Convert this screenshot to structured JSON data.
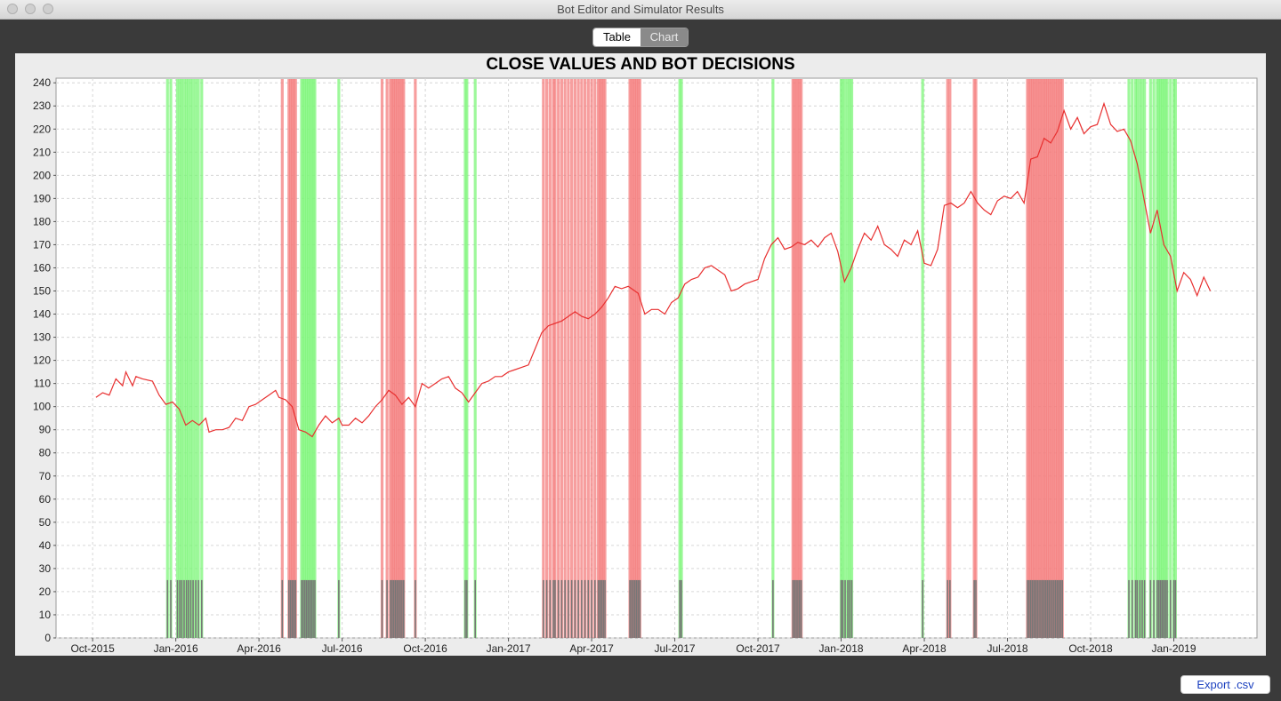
{
  "window": {
    "title": "Bot Editor and Simulator Results"
  },
  "tabs": [
    {
      "label": "Table",
      "selected": true
    },
    {
      "label": "Chart",
      "selected": false
    }
  ],
  "export_button": {
    "label": "Export .csv"
  },
  "colors": {
    "buy": "#7ef57a",
    "sell": "#f47e7e",
    "line": "#e83030",
    "marker": "#777777"
  },
  "chart_data": {
    "type": "line",
    "title": "CLOSE VALUES AND BOT DECISIONS",
    "xlabel": "",
    "ylabel": "",
    "ylim": [
      0,
      242
    ],
    "yticks": [
      0,
      10,
      20,
      30,
      40,
      50,
      60,
      70,
      80,
      90,
      100,
      110,
      120,
      130,
      140,
      150,
      160,
      170,
      180,
      190,
      200,
      210,
      220,
      230,
      240
    ],
    "xlim": [
      2015.64,
      2019.25
    ],
    "xticks": [
      {
        "label": "Oct-2015",
        "x": 2015.75
      },
      {
        "label": "Jan-2016",
        "x": 2016.0
      },
      {
        "label": "Apr-2016",
        "x": 2016.25
      },
      {
        "label": "Jul-2016",
        "x": 2016.5
      },
      {
        "label": "Oct-2016",
        "x": 2016.75
      },
      {
        "label": "Jan-2017",
        "x": 2017.0
      },
      {
        "label": "Apr-2017",
        "x": 2017.25
      },
      {
        "label": "Jul-2017",
        "x": 2017.5
      },
      {
        "label": "Oct-2017",
        "x": 2017.75
      },
      {
        "label": "Jan-2018",
        "x": 2018.0
      },
      {
        "label": "Apr-2018",
        "x": 2018.25
      },
      {
        "label": "Jul-2018",
        "x": 2018.5
      },
      {
        "label": "Oct-2018",
        "x": 2018.75
      },
      {
        "label": "Jan-2019",
        "x": 2019.0
      }
    ],
    "grid": true,
    "marker_value": 25,
    "series": [
      {
        "name": "Close",
        "points": [
          [
            2015.76,
            104
          ],
          [
            2015.78,
            106
          ],
          [
            2015.8,
            105
          ],
          [
            2015.82,
            112
          ],
          [
            2015.84,
            109
          ],
          [
            2015.85,
            115
          ],
          [
            2015.87,
            109
          ],
          [
            2015.88,
            113
          ],
          [
            2015.9,
            112
          ],
          [
            2015.93,
            111
          ],
          [
            2015.95,
            105
          ],
          [
            2015.97,
            101
          ],
          [
            2015.99,
            102
          ],
          [
            2016.01,
            99
          ],
          [
            2016.03,
            92
          ],
          [
            2016.05,
            94
          ],
          [
            2016.07,
            92
          ],
          [
            2016.09,
            95
          ],
          [
            2016.1,
            89
          ],
          [
            2016.12,
            90
          ],
          [
            2016.14,
            90
          ],
          [
            2016.16,
            91
          ],
          [
            2016.18,
            95
          ],
          [
            2016.2,
            94
          ],
          [
            2016.22,
            100
          ],
          [
            2016.24,
            101
          ],
          [
            2016.26,
            103
          ],
          [
            2016.28,
            105
          ],
          [
            2016.3,
            107
          ],
          [
            2016.31,
            104
          ],
          [
            2016.33,
            103
          ],
          [
            2016.35,
            100
          ],
          [
            2016.37,
            90
          ],
          [
            2016.39,
            89
          ],
          [
            2016.41,
            87
          ],
          [
            2016.43,
            92
          ],
          [
            2016.45,
            96
          ],
          [
            2016.47,
            93
          ],
          [
            2016.49,
            95
          ],
          [
            2016.5,
            92
          ],
          [
            2016.52,
            92
          ],
          [
            2016.54,
            95
          ],
          [
            2016.56,
            93
          ],
          [
            2016.58,
            96
          ],
          [
            2016.6,
            100
          ],
          [
            2016.62,
            103
          ],
          [
            2016.64,
            107
          ],
          [
            2016.66,
            105
          ],
          [
            2016.68,
            101
          ],
          [
            2016.7,
            104
          ],
          [
            2016.72,
            100
          ],
          [
            2016.74,
            110
          ],
          [
            2016.76,
            108
          ],
          [
            2016.78,
            110
          ],
          [
            2016.8,
            112
          ],
          [
            2016.82,
            113
          ],
          [
            2016.84,
            108
          ],
          [
            2016.86,
            106
          ],
          [
            2016.88,
            102
          ],
          [
            2016.9,
            106
          ],
          [
            2016.92,
            110
          ],
          [
            2016.94,
            111
          ],
          [
            2016.96,
            113
          ],
          [
            2016.98,
            113
          ],
          [
            2017.0,
            115
          ],
          [
            2017.02,
            116
          ],
          [
            2017.04,
            117
          ],
          [
            2017.06,
            118
          ],
          [
            2017.08,
            125
          ],
          [
            2017.1,
            132
          ],
          [
            2017.12,
            135
          ],
          [
            2017.14,
            136
          ],
          [
            2017.16,
            137
          ],
          [
            2017.18,
            139
          ],
          [
            2017.2,
            141
          ],
          [
            2017.22,
            139
          ],
          [
            2017.24,
            138
          ],
          [
            2017.26,
            140
          ],
          [
            2017.28,
            143
          ],
          [
            2017.3,
            147
          ],
          [
            2017.32,
            152
          ],
          [
            2017.34,
            151
          ],
          [
            2017.36,
            152
          ],
          [
            2017.38,
            150
          ],
          [
            2017.39,
            149
          ],
          [
            2017.41,
            140
          ],
          [
            2017.43,
            142
          ],
          [
            2017.45,
            142
          ],
          [
            2017.47,
            140
          ],
          [
            2017.49,
            145
          ],
          [
            2017.51,
            147
          ],
          [
            2017.53,
            153
          ],
          [
            2017.55,
            155
          ],
          [
            2017.57,
            156
          ],
          [
            2017.59,
            160
          ],
          [
            2017.61,
            161
          ],
          [
            2017.63,
            159
          ],
          [
            2017.65,
            157
          ],
          [
            2017.67,
            150
          ],
          [
            2017.69,
            151
          ],
          [
            2017.71,
            153
          ],
          [
            2017.73,
            154
          ],
          [
            2017.75,
            155
          ],
          [
            2017.77,
            164
          ],
          [
            2017.79,
            170
          ],
          [
            2017.81,
            173
          ],
          [
            2017.83,
            168
          ],
          [
            2017.85,
            169
          ],
          [
            2017.87,
            171
          ],
          [
            2017.89,
            170
          ],
          [
            2017.91,
            172
          ],
          [
            2017.93,
            169
          ],
          [
            2017.95,
            173
          ],
          [
            2017.97,
            175
          ],
          [
            2017.99,
            167
          ],
          [
            2018.01,
            154
          ],
          [
            2018.03,
            160
          ],
          [
            2018.05,
            168
          ],
          [
            2018.07,
            175
          ],
          [
            2018.09,
            172
          ],
          [
            2018.11,
            178
          ],
          [
            2018.13,
            170
          ],
          [
            2018.15,
            168
          ],
          [
            2018.17,
            165
          ],
          [
            2018.19,
            172
          ],
          [
            2018.21,
            170
          ],
          [
            2018.23,
            176
          ],
          [
            2018.25,
            162
          ],
          [
            2018.27,
            161
          ],
          [
            2018.29,
            168
          ],
          [
            2018.31,
            187
          ],
          [
            2018.33,
            188
          ],
          [
            2018.35,
            186
          ],
          [
            2018.37,
            188
          ],
          [
            2018.39,
            193
          ],
          [
            2018.41,
            188
          ],
          [
            2018.43,
            185
          ],
          [
            2018.45,
            183
          ],
          [
            2018.47,
            189
          ],
          [
            2018.49,
            191
          ],
          [
            2018.51,
            190
          ],
          [
            2018.53,
            193
          ],
          [
            2018.55,
            188
          ],
          [
            2018.57,
            207
          ],
          [
            2018.59,
            208
          ],
          [
            2018.61,
            216
          ],
          [
            2018.63,
            214
          ],
          [
            2018.65,
            219
          ],
          [
            2018.67,
            228
          ],
          [
            2018.69,
            220
          ],
          [
            2018.71,
            225
          ],
          [
            2018.73,
            218
          ],
          [
            2018.75,
            221
          ],
          [
            2018.77,
            222
          ],
          [
            2018.79,
            231
          ],
          [
            2018.81,
            222
          ],
          [
            2018.83,
            219
          ],
          [
            2018.85,
            220
          ],
          [
            2018.87,
            215
          ],
          [
            2018.89,
            205
          ],
          [
            2018.91,
            190
          ],
          [
            2018.93,
            175
          ],
          [
            2018.95,
            185
          ],
          [
            2018.97,
            170
          ],
          [
            2018.99,
            165
          ],
          [
            2019.01,
            150
          ],
          [
            2019.03,
            158
          ],
          [
            2019.05,
            155
          ],
          [
            2019.07,
            148
          ],
          [
            2019.09,
            156
          ],
          [
            2019.11,
            150
          ]
        ]
      }
    ],
    "buy_signals": [
      2015.975,
      2015.985,
      2016.005,
      2016.012,
      2016.018,
      2016.025,
      2016.032,
      2016.038,
      2016.045,
      2016.052,
      2016.06,
      2016.068,
      2016.078,
      2016.378,
      2016.383,
      2016.388,
      2016.393,
      2016.398,
      2016.403,
      2016.408,
      2016.413,
      2016.418,
      2016.49,
      2016.87,
      2016.875,
      2016.9,
      2017.515,
      2017.52,
      2017.795,
      2018.0,
      2018.005,
      2018.012,
      2018.02,
      2018.026,
      2018.032,
      2018.245,
      2018.865,
      2018.875,
      2018.885,
      2018.89,
      2018.898,
      2018.905,
      2018.912,
      2018.93,
      2018.94,
      2018.95,
      2018.955,
      2018.96,
      2018.965,
      2018.97,
      2018.975,
      2018.98,
      2018.99,
      2019.0,
      2019.005
    ],
    "sell_signals": [
      2016.32,
      2016.34,
      2016.345,
      2016.35,
      2016.355,
      2016.36,
      2016.62,
      2016.635,
      2016.645,
      2016.65,
      2016.655,
      2016.66,
      2016.665,
      2016.67,
      2016.675,
      2016.68,
      2016.685,
      2016.72,
      2017.105,
      2017.115,
      2017.125,
      2017.135,
      2017.14,
      2017.15,
      2017.16,
      2017.17,
      2017.18,
      2017.19,
      2017.2,
      2017.21,
      2017.22,
      2017.23,
      2017.24,
      2017.25,
      2017.26,
      2017.27,
      2017.275,
      2017.28,
      2017.285,
      2017.29,
      2017.365,
      2017.37,
      2017.375,
      2017.38,
      2017.385,
      2017.39,
      2017.395,
      2017.855,
      2017.86,
      2017.865,
      2017.87,
      2017.875,
      2017.88,
      2018.32,
      2018.327,
      2018.4,
      2018.405,
      2018.56,
      2018.565,
      2018.57,
      2018.575,
      2018.58,
      2018.585,
      2018.59,
      2018.595,
      2018.6,
      2018.605,
      2018.61,
      2018.615,
      2018.62,
      2018.625,
      2018.63,
      2018.635,
      2018.64,
      2018.645,
      2018.65,
      2018.655,
      2018.66,
      2018.665
    ]
  }
}
